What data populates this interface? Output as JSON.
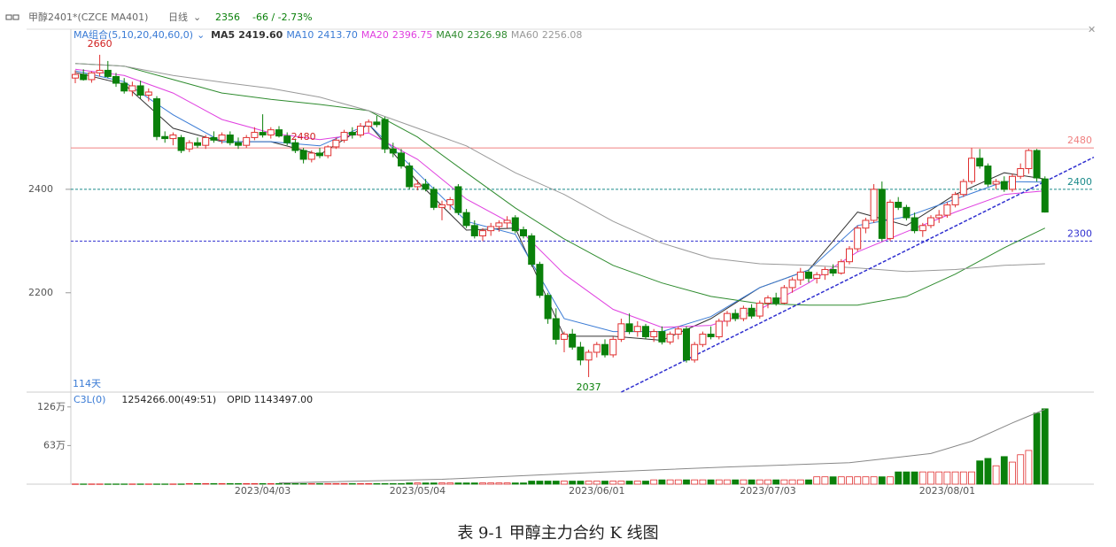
{
  "chart_data": {
    "type": "candlestick",
    "header": {
      "symbol": "甲醇2401*(CZCE MA401)",
      "period": "日线",
      "last": "2356",
      "change": "-66 / -2.73%"
    },
    "ma_header": "MA组合(5,10,20,40,60,0)",
    "days_label": "114天",
    "caption": "表 9-1 甲醇主力合约 K 线图",
    "categories": [
      null,
      null,
      null,
      null,
      null,
      null,
      null,
      null,
      null,
      null,
      null,
      null,
      null,
      null,
      null,
      null,
      null,
      null,
      null,
      null,
      null,
      null,
      null,
      "2023/04/03",
      null,
      null,
      null,
      null,
      null,
      null,
      null,
      null,
      null,
      null,
      null,
      null,
      null,
      null,
      null,
      null,
      null,
      null,
      "2023/05/04",
      null,
      null,
      null,
      null,
      null,
      null,
      null,
      null,
      null,
      null,
      null,
      null,
      null,
      null,
      null,
      null,
      null,
      null,
      null,
      null,
      null,
      "2023/06/01",
      null,
      null,
      null,
      null,
      null,
      null,
      null,
      null,
      null,
      null,
      null,
      null,
      null,
      null,
      null,
      null,
      null,
      null,
      null,
      null,
      "2023/07/03",
      null,
      null,
      null,
      null,
      null,
      null,
      null,
      null,
      null,
      null,
      null,
      null,
      null,
      null,
      null,
      null,
      null,
      null,
      null,
      null,
      null,
      "2023/08/01",
      null,
      null,
      null,
      null,
      null,
      null,
      null,
      null,
      null,
      null,
      null,
      null
    ],
    "open": [
      2615,
      2622,
      2612,
      2625,
      2630,
      2618,
      2605,
      2590,
      2600,
      2582,
      2575,
      2502,
      2498,
      2500,
      2478,
      2490,
      2485,
      2500,
      2495,
      2505,
      2490,
      2485,
      2500,
      2510,
      2505,
      2515,
      2503,
      2490,
      2475,
      2458,
      2470,
      2465,
      2482,
      2495,
      2510,
      2505,
      2522,
      2530,
      2535,
      2478,
      2470,
      2445,
      2405,
      2410,
      2400,
      2365,
      2370,
      2405,
      2355,
      2330,
      2310,
      2320,
      2328,
      2335,
      2345,
      2322,
      2310,
      2255,
      2195,
      2150,
      2110,
      2120,
      2095,
      2070,
      2085,
      2100,
      2080,
      2110,
      2140,
      2125,
      2135,
      2115,
      2125,
      2105,
      2120,
      2130,
      2070,
      2100,
      2120,
      2115,
      2145,
      2160,
      2150,
      2170,
      2155,
      2180,
      2190,
      2180,
      2210,
      2225,
      2240,
      2228,
      2235,
      2245,
      2238,
      2260,
      2285,
      2325,
      2340,
      2400,
      2305,
      2375,
      2365,
      2345,
      2320,
      2330,
      2345,
      2350,
      2370,
      2390,
      2415,
      2460,
      2445,
      2410,
      2415,
      2400,
      2425,
      2440,
      2475,
      2420
    ],
    "high": [
      2630,
      2632,
      2628,
      2660,
      2648,
      2625,
      2615,
      2608,
      2610,
      2595,
      2580,
      2512,
      2510,
      2505,
      2495,
      2500,
      2505,
      2512,
      2510,
      2512,
      2500,
      2505,
      2520,
      2545,
      2520,
      2522,
      2510,
      2498,
      2480,
      2475,
      2480,
      2485,
      2500,
      2515,
      2520,
      2528,
      2535,
      2542,
      2540,
      2490,
      2478,
      2452,
      2418,
      2420,
      2405,
      2378,
      2385,
      2410,
      2362,
      2340,
      2325,
      2335,
      2340,
      2348,
      2350,
      2328,
      2315,
      2260,
      2200,
      2170,
      2125,
      2130,
      2105,
      2090,
      2105,
      2110,
      2115,
      2150,
      2160,
      2145,
      2140,
      2130,
      2135,
      2125,
      2135,
      2135,
      2105,
      2125,
      2135,
      2150,
      2165,
      2168,
      2175,
      2178,
      2185,
      2195,
      2200,
      2215,
      2230,
      2248,
      2245,
      2240,
      2250,
      2255,
      2265,
      2290,
      2330,
      2345,
      2410,
      2415,
      2380,
      2385,
      2370,
      2355,
      2335,
      2350,
      2360,
      2375,
      2395,
      2420,
      2480,
      2478,
      2450,
      2420,
      2425,
      2430,
      2450,
      2478,
      2478,
      2425
    ],
    "low": [
      2605,
      2610,
      2606,
      2618,
      2615,
      2598,
      2585,
      2580,
      2575,
      2570,
      2495,
      2490,
      2485,
      2470,
      2472,
      2480,
      2478,
      2490,
      2488,
      2485,
      2478,
      2480,
      2495,
      2500,
      2498,
      2500,
      2485,
      2470,
      2450,
      2452,
      2460,
      2460,
      2478,
      2490,
      2498,
      2500,
      2510,
      2520,
      2470,
      2462,
      2440,
      2400,
      2398,
      2396,
      2360,
      2340,
      2360,
      2350,
      2325,
      2305,
      2300,
      2310,
      2318,
      2325,
      2315,
      2305,
      2250,
      2190,
      2140,
      2100,
      2085,
      2090,
      2060,
      2037,
      2075,
      2075,
      2075,
      2105,
      2120,
      2115,
      2110,
      2105,
      2100,
      2100,
      2110,
      2065,
      2065,
      2095,
      2110,
      2110,
      2135,
      2145,
      2145,
      2150,
      2150,
      2170,
      2175,
      2178,
      2200,
      2215,
      2220,
      2218,
      2225,
      2232,
      2235,
      2255,
      2280,
      2315,
      2335,
      2300,
      2300,
      2360,
      2340,
      2315,
      2308,
      2325,
      2335,
      2345,
      2365,
      2385,
      2410,
      2440,
      2405,
      2400,
      2395,
      2395,
      2420,
      2430,
      2415,
      2355
    ],
    "close": [
      2622,
      2612,
      2625,
      2630,
      2618,
      2605,
      2590,
      2600,
      2582,
      2588,
      2502,
      2498,
      2505,
      2475,
      2490,
      2485,
      2500,
      2495,
      2505,
      2490,
      2485,
      2500,
      2510,
      2505,
      2515,
      2503,
      2490,
      2475,
      2458,
      2470,
      2465,
      2482,
      2495,
      2510,
      2505,
      2522,
      2530,
      2525,
      2478,
      2470,
      2445,
      2405,
      2410,
      2400,
      2365,
      2370,
      2380,
      2355,
      2330,
      2310,
      2320,
      2328,
      2335,
      2340,
      2320,
      2310,
      2255,
      2195,
      2150,
      2110,
      2120,
      2095,
      2070,
      2085,
      2100,
      2080,
      2110,
      2140,
      2125,
      2135,
      2115,
      2125,
      2105,
      2120,
      2130,
      2070,
      2100,
      2120,
      2115,
      2145,
      2160,
      2150,
      2170,
      2155,
      2180,
      2190,
      2180,
      2210,
      2225,
      2240,
      2228,
      2235,
      2245,
      2238,
      2260,
      2285,
      2325,
      2340,
      2400,
      2305,
      2375,
      2365,
      2345,
      2320,
      2330,
      2345,
      2350,
      2370,
      2390,
      2415,
      2460,
      2445,
      2410,
      2415,
      2400,
      2425,
      2440,
      2475,
      2422,
      2356
    ],
    "up_color": "#e03030",
    "down_color": "#0a800a",
    "ylim": [
      2008,
      2706
    ],
    "yticks": [
      2200,
      2400
    ],
    "price_lines": [
      {
        "value": 2480,
        "color": "#f08080",
        "dash": false
      },
      {
        "value": 2400,
        "color": "#1a8a8a",
        "dash": true
      },
      {
        "value": 2300,
        "color": "#3030d0",
        "dash": true
      }
    ],
    "trendline": {
      "x": [
        67,
        125
      ],
      "values": [
        2008,
        2462
      ],
      "color": "#3030d0"
    },
    "annotations": [
      {
        "value": 2660,
        "at": "high"
      },
      {
        "value": 2037,
        "at": "low"
      },
      {
        "value": 2480,
        "at": "high"
      }
    ],
    "ma_series": [
      {
        "name": "MA5",
        "value_label": "2419.60",
        "color": "#333333",
        "x": [
          0,
          6,
          12,
          18,
          24,
          30,
          36,
          42,
          48,
          54,
          60,
          66,
          72,
          78,
          84,
          90,
          96,
          102,
          108,
          114,
          119
        ],
        "values": [
          2626,
          2603,
          2518,
          2492,
          2492,
          2467,
          2526,
          2415,
          2321,
          2325,
          2116,
          2116,
          2108,
          2150,
          2210,
          2244,
          2356,
          2330,
          2390,
          2432,
          2420
        ]
      },
      {
        "name": "MA10",
        "value_label": "2413.70",
        "color": "#3a7bd5",
        "x": [
          0,
          6,
          12,
          18,
          24,
          30,
          36,
          42,
          48,
          54,
          60,
          66,
          72,
          78,
          84,
          90,
          96,
          102,
          108,
          114,
          119
        ],
        "values": [
          2629,
          2608,
          2544,
          2492,
          2492,
          2484,
          2526,
          2432,
          2338,
          2313,
          2150,
          2125,
          2125,
          2154,
          2210,
          2244,
          2330,
          2347,
          2381,
          2415,
          2414
        ]
      },
      {
        "name": "MA20",
        "value_label": "2396.75",
        "color": "#e040e0",
        "x": [
          0,
          6,
          12,
          18,
          24,
          30,
          36,
          42,
          48,
          54,
          60,
          66,
          72,
          78,
          84,
          90,
          96,
          102,
          108,
          114,
          119
        ],
        "values": [
          2632,
          2620,
          2586,
          2535,
          2509,
          2496,
          2509,
          2458,
          2381,
          2330,
          2236,
          2168,
          2133,
          2137,
          2168,
          2219,
          2279,
          2318,
          2356,
          2390,
          2397
        ]
      },
      {
        "name": "MA40",
        "value_label": "2326.98",
        "color": "#2e8b2e",
        "x": [
          0,
          6,
          12,
          18,
          24,
          30,
          36,
          42,
          48,
          54,
          60,
          66,
          72,
          78,
          84,
          90,
          96,
          102,
          108,
          114,
          119
        ],
        "values": [
          2643,
          2638,
          2612,
          2586,
          2574,
          2564,
          2552,
          2501,
          2432,
          2364,
          2304,
          2253,
          2219,
          2193,
          2179,
          2176,
          2176,
          2193,
          2236,
          2287,
          2325
        ]
      },
      {
        "name": "MA60",
        "value_label": "2256.08",
        "color": "#999999",
        "x": [
          0,
          6,
          12,
          18,
          24,
          30,
          36,
          42,
          48,
          54,
          60,
          66,
          72,
          78,
          84,
          90,
          96,
          102,
          108,
          114,
          119
        ],
        "values": [
          2643,
          2638,
          2620,
          2607,
          2595,
          2578,
          2552,
          2518,
          2484,
          2432,
          2390,
          2338,
          2296,
          2267,
          2256,
          2253,
          2248,
          2241,
          2245,
          2253,
          2256
        ]
      }
    ],
    "volume": {
      "header": [
        "C3L(0)",
        "1254266.00(49:51)",
        "OPID 1143497.00"
      ],
      "ylim": [
        0,
        143
      ],
      "yticks": [
        {
          "value": 63,
          "label": "63万"
        },
        {
          "value": 126,
          "label": "126万"
        }
      ],
      "values": [
        0.3,
        0.3,
        0.3,
        0.3,
        0.3,
        0.3,
        0.3,
        0.3,
        0.3,
        0.3,
        0.3,
        0.3,
        0.3,
        0.3,
        1,
        1,
        1,
        1,
        1,
        1,
        1,
        1,
        1,
        1,
        1,
        1,
        1,
        1,
        1,
        1,
        1,
        1,
        1,
        1,
        1,
        1,
        1,
        1,
        1,
        1,
        1,
        2,
        2,
        2,
        2,
        2,
        2,
        2,
        2,
        2,
        2,
        2,
        2,
        2,
        2,
        2,
        5,
        5,
        5,
        5,
        5,
        5,
        5,
        5,
        5,
        5,
        5,
        5,
        5,
        5,
        5,
        7,
        7,
        7,
        7,
        7,
        7,
        7,
        7,
        7,
        7,
        7,
        7,
        7,
        7,
        7,
        7,
        7,
        7,
        7,
        7,
        12,
        12,
        12,
        12,
        12,
        12,
        12,
        12,
        12,
        12,
        20,
        20,
        20,
        20,
        20,
        20,
        20,
        20,
        20,
        20,
        38,
        42,
        30,
        45,
        36,
        48,
        55,
        116,
        123
      ],
      "oi": {
        "color": "#888888",
        "x": [
          25,
          45,
          65,
          80,
          95,
          105,
          110,
          115,
          119
        ],
        "values": [
          2,
          8,
          20,
          28,
          35,
          50,
          70,
          100,
          122
        ]
      }
    }
  }
}
